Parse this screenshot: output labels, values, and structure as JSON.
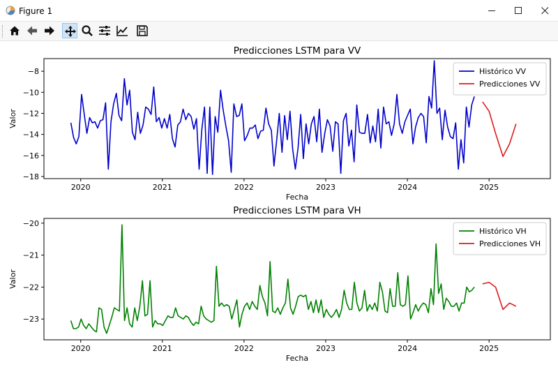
{
  "window": {
    "title": "Figure 1",
    "minimize_icon": "minimize-icon",
    "maximize_icon": "maximize-icon",
    "close_icon": "close-icon"
  },
  "toolbar": {
    "buttons": [
      "home-icon",
      "back-icon",
      "forward-icon",
      "pan-icon",
      "zoom-icon",
      "configure-subplots-icon",
      "edit-axes-icon",
      "save-icon"
    ],
    "active": "pan-icon"
  },
  "chart_data": [
    {
      "type": "line",
      "title": "Predicciones LSTM para VV",
      "xlabel": "Fecha",
      "ylabel": "Valor",
      "xlim": [
        2019.55,
        2025.75
      ],
      "ylim": [
        -18.2,
        -6.8
      ],
      "xticks": [
        "2020",
        "2021",
        "2022",
        "2023",
        "2024",
        "2025"
      ],
      "yticks": [
        "-8",
        "-10",
        "-12",
        "-14",
        "-16",
        "-18"
      ],
      "legend_position": "top-right",
      "series": [
        {
          "name": "Histórico VV",
          "color": "#0000cc",
          "x_start": 2019.88,
          "x_end": 2024.82,
          "y": [
            -12.9,
            -14.3,
            -14.9,
            -14.2,
            -10.2,
            -12.1,
            -13.9,
            -12.4,
            -12.9,
            -12.8,
            -13.4,
            -12.7,
            -12.6,
            -11.0,
            -17.3,
            -12.8,
            -11.1,
            -10.1,
            -12.2,
            -12.7,
            -8.7,
            -11.2,
            -9.8,
            -13.8,
            -14.5,
            -11.9,
            -13.9,
            -13.1,
            -11.4,
            -11.6,
            -12.1,
            -9.5,
            -12.8,
            -12.4,
            -13.4,
            -12.5,
            -13.4,
            -12.1,
            -14.4,
            -15.2,
            -13.1,
            -12.8,
            -11.6,
            -12.6,
            -12.0,
            -12.3,
            -13.5,
            -12.5,
            -17.3,
            -13.5,
            -11.4,
            -17.7,
            -11.4,
            -17.8,
            -12.3,
            -13.8,
            -9.8,
            -11.7,
            -13.2,
            -14.6,
            -17.6,
            -11.1,
            -12.3,
            -12.2,
            -11.1,
            -14.6,
            -14.1,
            -13.4,
            -13.4,
            -13.1,
            -14.4,
            -13.7,
            -13.6,
            -11.5,
            -13.0,
            -13.6,
            -17.0,
            -14.6,
            -12.0,
            -15.7,
            -12.2,
            -14.5,
            -11.8,
            -15.4,
            -17.3,
            -15.3,
            -12.1,
            -16.3,
            -13.0,
            -14.9,
            -13.0,
            -12.3,
            -14.7,
            -11.6,
            -15.7,
            -13.9,
            -12.6,
            -13.2,
            -15.6,
            -12.8,
            -13.0,
            -17.7,
            -12.7,
            -12.0,
            -15.1,
            -13.6,
            -16.6,
            -11.2,
            -13.8,
            -13.9,
            -13.9,
            -12.1,
            -14.8,
            -13.2,
            -14.7,
            -11.6,
            -15.3,
            -11.4,
            -13.0,
            -12.8,
            -14.1,
            -13.0,
            -10.2,
            -13.0,
            -13.9,
            -12.8,
            -12.2,
            -11.6,
            -14.9,
            -13.3,
            -12.4,
            -12.0,
            -12.3,
            -14.8,
            -10.4,
            -11.5,
            -7.0,
            -12.0,
            -11.5,
            -14.5,
            -11.7,
            -13.3,
            -14.2,
            -14.4,
            -12.9,
            -17.3,
            -14.5,
            -16.7,
            -11.4,
            -13.3,
            -11.2,
            -10.4
          ]
        },
        {
          "name": "Predicciones VV",
          "color": "#dd1c1c",
          "x": [
            2024.92,
            2025.0,
            2025.08,
            2025.17,
            2025.25,
            2025.33
          ],
          "y": [
            -10.9,
            -11.8,
            -13.9,
            -16.1,
            -14.9,
            -13.0
          ]
        }
      ]
    },
    {
      "type": "line",
      "title": "Predicciones LSTM para VH",
      "xlabel": "Fecha",
      "ylabel": "Valor",
      "xlim": [
        2019.55,
        2025.75
      ],
      "ylim": [
        -23.65,
        -19.85
      ],
      "xticks": [
        "2020",
        "2021",
        "2022",
        "2023",
        "2024",
        "2025"
      ],
      "yticks": [
        "-20",
        "-21",
        "-22",
        "-23"
      ],
      "legend_position": "top-right",
      "series": [
        {
          "name": "Histórico VH",
          "color": "#008000",
          "x_start": 2019.88,
          "x_end": 2024.82,
          "y": [
            -23.05,
            -23.3,
            -23.3,
            -23.25,
            -23.0,
            -23.2,
            -23.3,
            -23.15,
            -23.25,
            -23.35,
            -23.4,
            -22.65,
            -22.7,
            -23.25,
            -23.45,
            -23.2,
            -22.95,
            -22.65,
            -22.7,
            -22.75,
            -20.05,
            -23.05,
            -22.65,
            -23.15,
            -23.25,
            -22.65,
            -23.05,
            -22.6,
            -21.8,
            -22.9,
            -22.85,
            -21.8,
            -23.25,
            -23.05,
            -23.15,
            -23.15,
            -23.2,
            -23.05,
            -22.9,
            -22.95,
            -22.95,
            -22.65,
            -22.9,
            -22.95,
            -23.0,
            -22.9,
            -22.95,
            -23.1,
            -23.2,
            -23.1,
            -23.15,
            -22.6,
            -22.9,
            -23.0,
            -23.05,
            -23.1,
            -23.05,
            -21.35,
            -22.6,
            -22.5,
            -22.6,
            -22.55,
            -22.6,
            -23.0,
            -22.7,
            -22.4,
            -23.25,
            -22.85,
            -22.6,
            -22.5,
            -22.7,
            -22.45,
            -22.6,
            -22.7,
            -21.95,
            -22.3,
            -22.5,
            -22.9,
            -21.2,
            -22.75,
            -22.8,
            -22.65,
            -22.85,
            -22.65,
            -22.5,
            -21.75,
            -22.65,
            -22.85,
            -22.6,
            -22.3,
            -22.25,
            -22.3,
            -22.25,
            -22.7,
            -22.45,
            -22.8,
            -22.4,
            -22.8,
            -22.4,
            -22.95,
            -22.7,
            -22.85,
            -22.95,
            -22.85,
            -22.7,
            -22.95,
            -22.7,
            -22.1,
            -22.5,
            -22.7,
            -22.7,
            -21.85,
            -22.5,
            -22.75,
            -22.65,
            -22.1,
            -22.75,
            -22.55,
            -22.7,
            -22.5,
            -22.75,
            -21.85,
            -22.15,
            -22.75,
            -22.8,
            -22.05,
            -22.6,
            -22.6,
            -21.55,
            -22.55,
            -22.6,
            -22.55,
            -21.65,
            -23.0,
            -22.8,
            -22.55,
            -22.75,
            -22.6,
            -22.5,
            -22.55,
            -22.8,
            -22.05,
            -22.55,
            -20.65,
            -22.2,
            -21.9,
            -22.7,
            -22.35,
            -22.45,
            -22.6,
            -22.6,
            -22.5,
            -22.75,
            -22.5,
            -22.5,
            -22.0,
            -22.15,
            -22.1,
            -22.0
          ]
        },
        {
          "name": "Predicciones VH",
          "color": "#dd1c1c",
          "x": [
            2024.92,
            2025.0,
            2025.08,
            2025.17,
            2025.25,
            2025.33
          ],
          "y": [
            -21.9,
            -21.85,
            -22.0,
            -22.7,
            -22.5,
            -22.6
          ]
        }
      ]
    }
  ]
}
